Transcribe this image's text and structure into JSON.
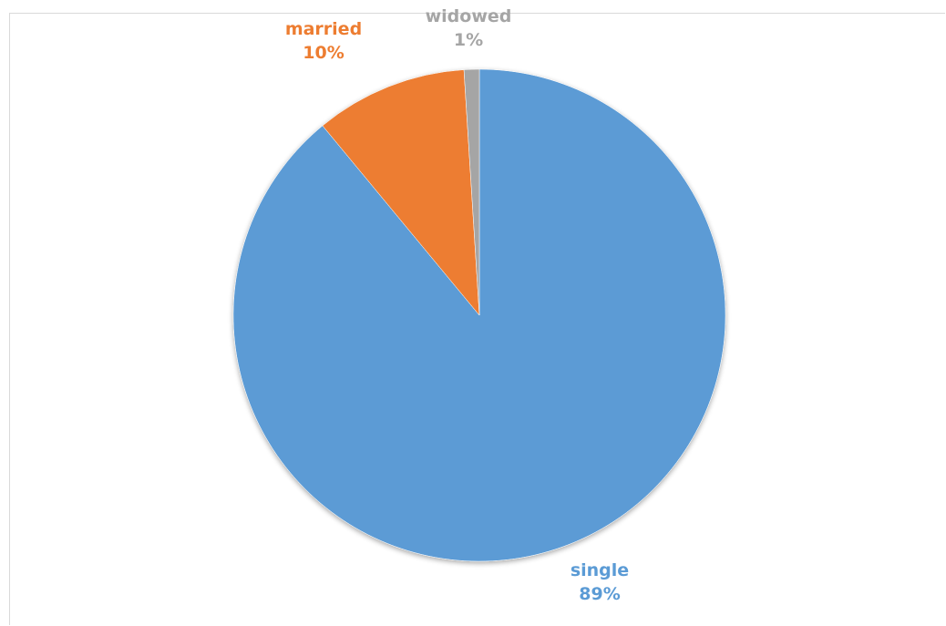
{
  "chart_data": {
    "type": "pie",
    "categories": [
      "single",
      "married",
      "widowed"
    ],
    "values": [
      89,
      10,
      1
    ],
    "value_format": "percent",
    "colors": [
      "#5b9bd5",
      "#ed7d31",
      "#a5a5a5"
    ],
    "start_angle_deg": 0,
    "direction": "clockwise",
    "slices": [
      {
        "category": "single",
        "label": "single",
        "value_label": "89%",
        "color": "#5b9bd5"
      },
      {
        "category": "married",
        "label": "married",
        "value_label": "10%",
        "color": "#ed7d31"
      },
      {
        "category": "widowed",
        "label": "widowed",
        "value_label": "1%",
        "color": "#a5a5a5"
      }
    ],
    "legend": "none"
  }
}
